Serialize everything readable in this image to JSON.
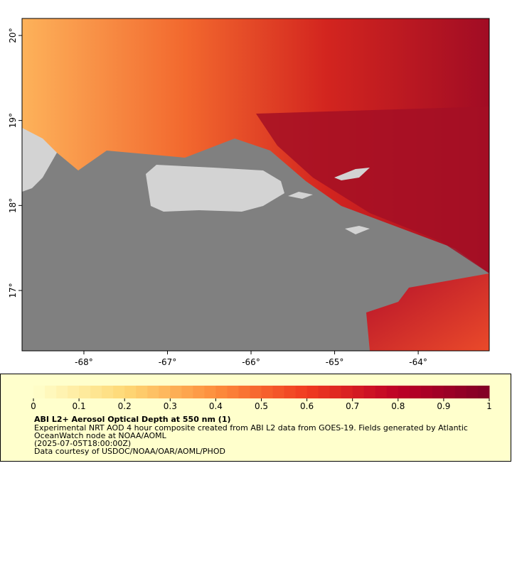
{
  "map": {
    "xlim": [
      -68.74,
      -63.15
    ],
    "ylim": [
      16.29,
      20.2
    ],
    "xticks": [
      {
        "value": -68,
        "label": "-68°"
      },
      {
        "value": -67,
        "label": "-67°"
      },
      {
        "value": -66,
        "label": "-66°"
      },
      {
        "value": -65,
        "label": "-65°"
      },
      {
        "value": -64,
        "label": "-64°"
      }
    ],
    "yticks": [
      {
        "value": 17,
        "label": "17°"
      },
      {
        "value": 18,
        "label": "18°"
      },
      {
        "value": 19,
        "label": "19°"
      },
      {
        "value": 20,
        "label": "20°"
      }
    ]
  },
  "colorbar": {
    "lim": [
      0,
      1
    ],
    "ticks": [
      0,
      0.1,
      0.2,
      0.3,
      0.4,
      0.5,
      0.6,
      0.7,
      0.8,
      0.9,
      1
    ]
  },
  "legend": {
    "title": "ABI L2+ Aerosol Optical Depth at 550 nm (1)",
    "lines": [
      "Experimental NRT AOD 4 hour composite created from ABI L2 data from GOES-19. Fields generated by Atlantic",
      "OceanWatch node at NOAA/AOML",
      "(2025-07-05T18:00:00Z)",
      "Data courtesy of USDOC/NOAA/OAR/AOML/PHOD"
    ]
  }
}
